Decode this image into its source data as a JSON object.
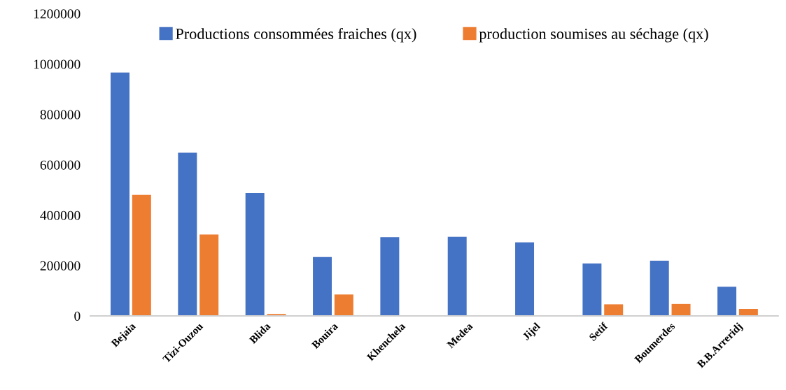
{
  "chart_data": {
    "type": "bar",
    "categories": [
      "Bejaia",
      "Tizi-Ouzou",
      "Blida",
      "Bouira",
      "Khenchela",
      "Medea",
      "Jijel",
      "Setif",
      "Boumerdes",
      "B.B.Arreridj"
    ],
    "series": [
      {
        "name": "Productions consommées fraiches (qx)",
        "color": "#4472c4",
        "values": [
          966000,
          648000,
          488000,
          234000,
          313000,
          314000,
          292000,
          208000,
          219000,
          116000
        ]
      },
      {
        "name": "production soumises au séchage (qx)",
        "color": "#ed7d31",
        "values": [
          481000,
          323000,
          7500,
          85000,
          null,
          null,
          null,
          46000,
          47500,
          28000
        ]
      }
    ],
    "ylim": [
      0,
      1200000
    ],
    "yticks": [
      0,
      200000,
      400000,
      600000,
      800000,
      1000000,
      1200000
    ],
    "grid": false,
    "legend": "top"
  }
}
